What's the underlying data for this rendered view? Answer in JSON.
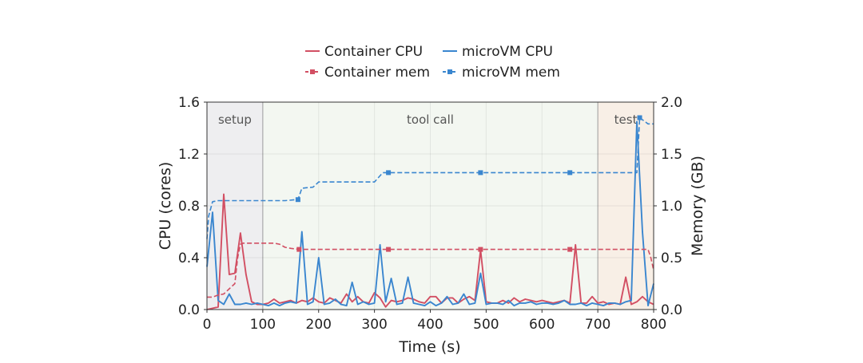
{
  "chart_data": {
    "type": "line",
    "xlabel": "Time (s)",
    "ylabel": "CPU (cores)",
    "y2label": "Memory (GB)",
    "xlim": [
      0,
      800
    ],
    "ylim": [
      0,
      1.6
    ],
    "y2lim": [
      0,
      2.0
    ],
    "xticks": [
      "0",
      "100",
      "200",
      "300",
      "400",
      "500",
      "600",
      "700",
      "800"
    ],
    "yticks": [
      "0.0",
      "0.4",
      "0.8",
      "1.2",
      "1.6"
    ],
    "y2ticks": [
      "0.0",
      "0.5",
      "1.0",
      "1.5",
      "2.0"
    ],
    "grid": true,
    "legend_position": "top-center",
    "phases": [
      {
        "label": "setup",
        "start": 0,
        "end": 100,
        "color": "#eeeef0"
      },
      {
        "label": "tool call",
        "start": 100,
        "end": 700,
        "color": "#f3f7f1"
      },
      {
        "label": "test",
        "start": 700,
        "end": 800,
        "color": "#f8efe6"
      }
    ],
    "colors": {
      "container": "#d24f63",
      "microvm": "#3a86cf"
    },
    "series": [
      {
        "name": "Container CPU",
        "axis": "left",
        "style": "solid",
        "color": "#d24f63",
        "x": [
          0,
          10,
          20,
          30,
          40,
          50,
          60,
          70,
          80,
          90,
          100,
          110,
          120,
          130,
          140,
          150,
          160,
          170,
          180,
          190,
          200,
          210,
          220,
          230,
          240,
          250,
          260,
          270,
          280,
          290,
          300,
          310,
          320,
          330,
          340,
          350,
          360,
          370,
          380,
          390,
          400,
          410,
          420,
          430,
          440,
          450,
          460,
          470,
          480,
          490,
          500,
          510,
          520,
          530,
          540,
          550,
          560,
          570,
          580,
          590,
          600,
          610,
          620,
          630,
          640,
          650,
          660,
          670,
          680,
          690,
          700,
          710,
          720,
          730,
          740,
          750,
          760,
          770,
          780,
          790,
          800
        ],
        "values": [
          0.0,
          0.01,
          0.02,
          0.89,
          0.27,
          0.28,
          0.59,
          0.27,
          0.06,
          0.04,
          0.04,
          0.05,
          0.08,
          0.05,
          0.06,
          0.07,
          0.05,
          0.07,
          0.06,
          0.09,
          0.06,
          0.05,
          0.09,
          0.07,
          0.05,
          0.12,
          0.06,
          0.1,
          0.06,
          0.05,
          0.13,
          0.09,
          0.02,
          0.07,
          0.06,
          0.07,
          0.09,
          0.08,
          0.06,
          0.05,
          0.1,
          0.1,
          0.05,
          0.09,
          0.09,
          0.05,
          0.08,
          0.1,
          0.07,
          0.46,
          0.06,
          0.05,
          0.05,
          0.07,
          0.05,
          0.09,
          0.06,
          0.08,
          0.07,
          0.06,
          0.07,
          0.06,
          0.05,
          0.06,
          0.07,
          0.05,
          0.5,
          0.05,
          0.05,
          0.1,
          0.05,
          0.06,
          0.04,
          0.05,
          0.04,
          0.25,
          0.04,
          0.06,
          0.1,
          0.06,
          0.04
        ]
      },
      {
        "name": "microVM CPU",
        "axis": "left",
        "style": "solid",
        "color": "#3a86cf",
        "x": [
          0,
          10,
          20,
          30,
          40,
          50,
          60,
          70,
          80,
          90,
          100,
          110,
          120,
          130,
          140,
          150,
          160,
          170,
          180,
          190,
          200,
          210,
          220,
          230,
          240,
          250,
          260,
          270,
          280,
          290,
          300,
          310,
          320,
          330,
          340,
          350,
          360,
          370,
          380,
          390,
          400,
          410,
          420,
          430,
          440,
          450,
          460,
          470,
          480,
          490,
          500,
          510,
          520,
          530,
          540,
          550,
          560,
          570,
          580,
          590,
          600,
          610,
          620,
          630,
          640,
          650,
          660,
          670,
          680,
          690,
          700,
          710,
          720,
          730,
          740,
          750,
          760,
          770,
          780,
          790,
          800
        ],
        "values": [
          0.33,
          0.75,
          0.07,
          0.04,
          0.12,
          0.04,
          0.04,
          0.05,
          0.04,
          0.05,
          0.04,
          0.03,
          0.05,
          0.03,
          0.05,
          0.06,
          0.05,
          0.6,
          0.04,
          0.06,
          0.4,
          0.04,
          0.05,
          0.08,
          0.04,
          0.03,
          0.21,
          0.04,
          0.06,
          0.04,
          0.05,
          0.5,
          0.06,
          0.24,
          0.04,
          0.05,
          0.25,
          0.05,
          0.04,
          0.03,
          0.06,
          0.03,
          0.05,
          0.1,
          0.04,
          0.05,
          0.12,
          0.04,
          0.05,
          0.28,
          0.04,
          0.05,
          0.05,
          0.04,
          0.07,
          0.03,
          0.05,
          0.05,
          0.06,
          0.04,
          0.05,
          0.05,
          0.04,
          0.05,
          0.07,
          0.04,
          0.04,
          0.05,
          0.03,
          0.05,
          0.04,
          0.03,
          0.05,
          0.05,
          0.04,
          0.06,
          0.07,
          1.45,
          0.6,
          0.03,
          0.2
        ]
      },
      {
        "name": "Container mem",
        "axis": "right",
        "style": "dashed",
        "color": "#d24f63",
        "x": [
          0,
          10,
          20,
          30,
          40,
          50,
          55,
          60,
          65,
          70,
          80,
          100,
          120,
          130,
          140,
          150,
          165,
          180,
          200,
          250,
          300,
          325,
          350,
          400,
          450,
          490,
          500,
          550,
          600,
          650,
          700,
          750,
          790,
          795,
          800
        ],
        "values": [
          0.12,
          0.12,
          0.14,
          0.15,
          0.2,
          0.25,
          0.5,
          0.63,
          0.64,
          0.64,
          0.64,
          0.64,
          0.64,
          0.63,
          0.6,
          0.59,
          0.58,
          0.58,
          0.58,
          0.58,
          0.58,
          0.58,
          0.58,
          0.58,
          0.58,
          0.58,
          0.58,
          0.58,
          0.58,
          0.58,
          0.58,
          0.58,
          0.58,
          0.5,
          0.38
        ]
      },
      {
        "name": "microVM mem",
        "axis": "right",
        "style": "dashed",
        "color": "#3a86cf",
        "x": [
          0,
          3,
          10,
          20,
          40,
          60,
          80,
          100,
          120,
          140,
          160,
          163,
          170,
          190,
          200,
          215,
          260,
          300,
          315,
          325,
          350,
          400,
          450,
          490,
          500,
          550,
          600,
          650,
          700,
          750,
          770,
          775,
          790,
          800
        ],
        "values": [
          0.68,
          0.9,
          1.04,
          1.05,
          1.05,
          1.05,
          1.05,
          1.05,
          1.05,
          1.05,
          1.06,
          1.06,
          1.17,
          1.18,
          1.23,
          1.23,
          1.23,
          1.23,
          1.32,
          1.32,
          1.32,
          1.32,
          1.32,
          1.32,
          1.32,
          1.32,
          1.32,
          1.32,
          1.32,
          1.32,
          1.32,
          1.85,
          1.79,
          1.79
        ]
      }
    ]
  }
}
